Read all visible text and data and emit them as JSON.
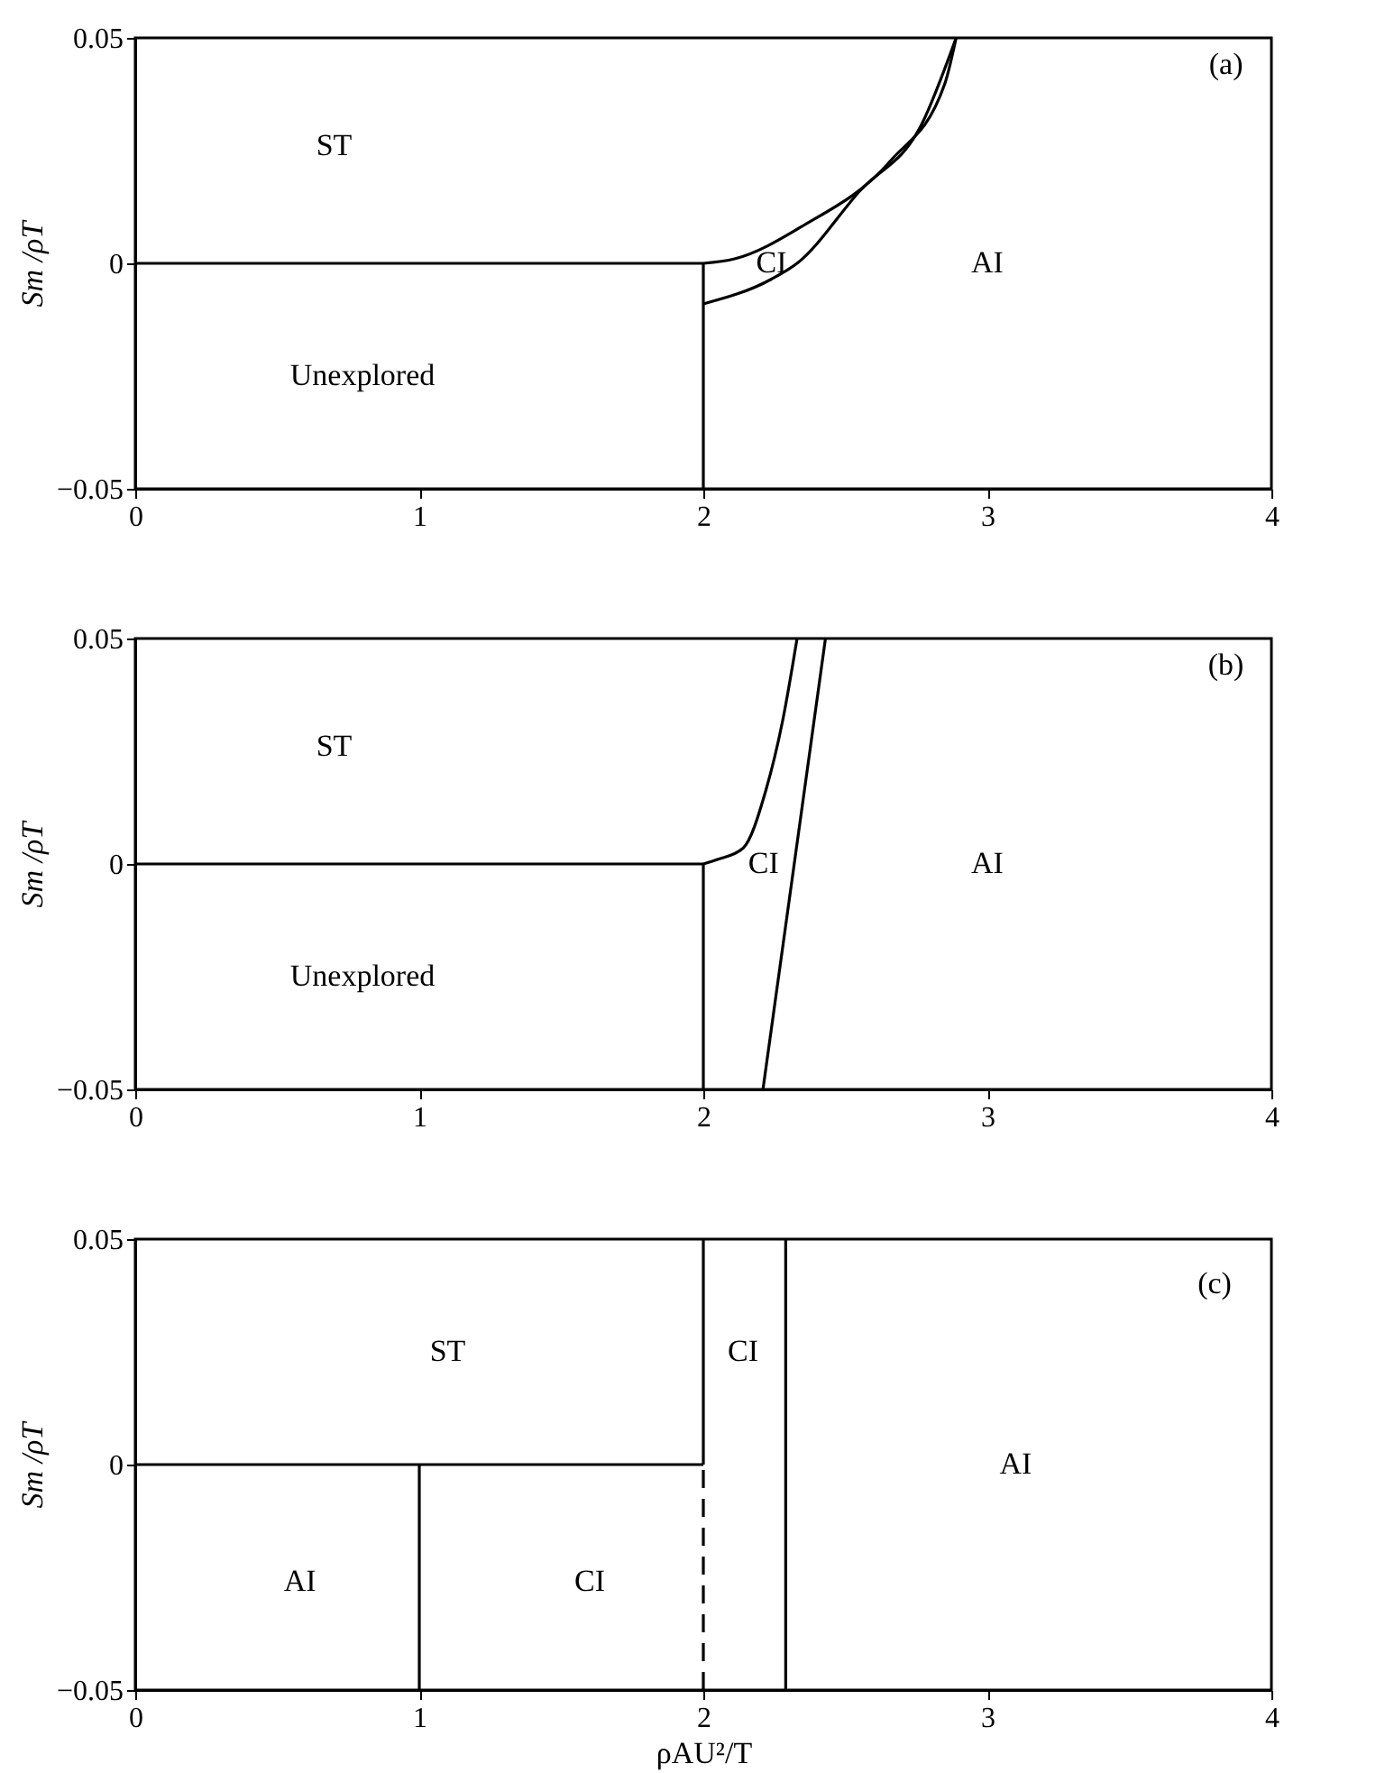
{
  "chart_data": [
    {
      "type": "line",
      "ylabel": "Sm /ρT",
      "xlim": [
        0,
        4
      ],
      "xticks": [
        0,
        1,
        2,
        3,
        4
      ],
      "ylim": [
        -0.05,
        0.05
      ],
      "yticks": [
        -0.05,
        0,
        0.05
      ],
      "grid": false,
      "series": [
        {
          "color": "#000000",
          "line_style": "solid",
          "x": [
            0,
            2.0
          ],
          "values": [
            0,
            0
          ]
        },
        {
          "color": "#000000",
          "line_style": "solid",
          "x": [
            2.0,
            2.0
          ],
          "values": [
            -0.05,
            0
          ]
        },
        {
          "color": "#000000",
          "line_style": "solid",
          "x": [
            2.0,
            2.11,
            2.35,
            2.66,
            2.85,
            2.89
          ],
          "values": [
            0,
            0.001,
            0.0083,
            0.0228,
            0.0398,
            0.05
          ]
        },
        {
          "color": "#000000",
          "line_style": "solid",
          "x": [
            2.0,
            2.24,
            2.33,
            2.55,
            2.77,
            2.89
          ],
          "values": [
            -0.009,
            -0.0035,
            0,
            0.016,
            0.031,
            0.05
          ]
        }
      ],
      "annotations": [
        "ST",
        "Unexplored",
        "CI",
        "AI",
        "(a)"
      ]
    },
    {
      "type": "line",
      "ylabel": "Sm /ρT",
      "xlim": [
        0,
        4
      ],
      "xticks": [
        0,
        1,
        2,
        3,
        4
      ],
      "ylim": [
        -0.05,
        0.05
      ],
      "yticks": [
        -0.05,
        0,
        0.05
      ],
      "grid": false,
      "series": [
        {
          "color": "#000000",
          "line_style": "solid",
          "x": [
            0,
            2.0
          ],
          "values": [
            0,
            0
          ]
        },
        {
          "color": "#000000",
          "line_style": "solid",
          "x": [
            2.0,
            2.0
          ],
          "values": [
            -0.05,
            0
          ]
        },
        {
          "color": "#000000",
          "line_style": "solid",
          "x": [
            2.0,
            2.05,
            2.14,
            2.22,
            2.28,
            2.33
          ],
          "values": [
            0,
            0.001,
            0.0035,
            0.0163,
            0.032,
            0.05
          ]
        },
        {
          "color": "#000000",
          "line_style": "solid",
          "x": [
            2.21,
            2.43
          ],
          "values": [
            -0.05,
            0.05
          ]
        }
      ],
      "annotations": [
        "ST",
        "Unexplored",
        "CI",
        "AI",
        "(b)"
      ]
    },
    {
      "type": "line",
      "xlabel": "ρAU²/T",
      "ylabel": "Sm /ρT",
      "xlim": [
        0,
        4
      ],
      "xticks": [
        0,
        1,
        2,
        3,
        4
      ],
      "ylim": [
        -0.05,
        0.05
      ],
      "yticks": [
        -0.05,
        0,
        0.05
      ],
      "grid": false,
      "series": [
        {
          "color": "#000000",
          "line_style": "solid",
          "x": [
            0,
            2.0
          ],
          "values": [
            0,
            0
          ]
        },
        {
          "color": "#000000",
          "line_style": "solid",
          "x": [
            1.0,
            1.0
          ],
          "values": [
            -0.05,
            0
          ]
        },
        {
          "color": "#000000",
          "line_style": "solid",
          "x": [
            2.0,
            2.0
          ],
          "values": [
            0,
            0.05
          ]
        },
        {
          "color": "#000000",
          "line_style": "dashed",
          "x": [
            2.0,
            2.0
          ],
          "values": [
            -0.05,
            0
          ]
        },
        {
          "color": "#000000",
          "line_style": "solid",
          "x": [
            2.29,
            2.29
          ],
          "values": [
            -0.05,
            0.05
          ]
        }
      ],
      "annotations": [
        "ST",
        "CI",
        "AI",
        "AI",
        "CI",
        "(c)"
      ]
    }
  ]
}
